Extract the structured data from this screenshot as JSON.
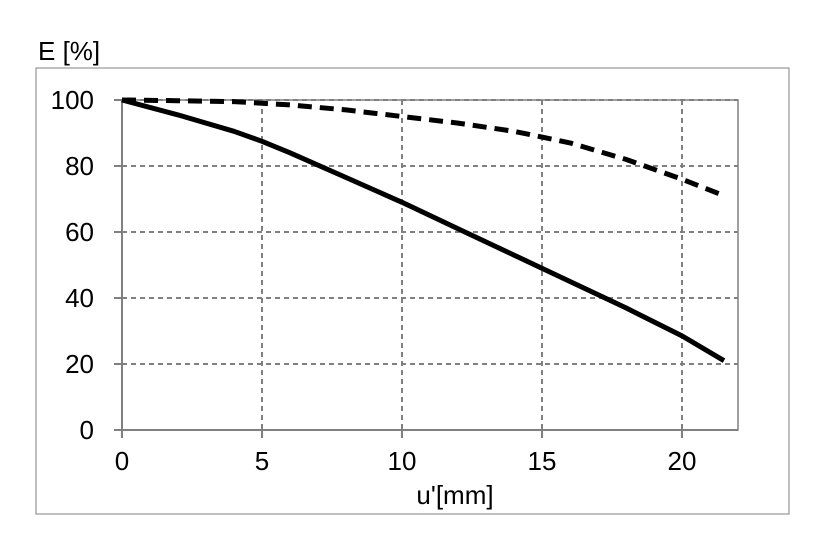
{
  "chart_data": {
    "type": "line",
    "title": "",
    "xlabel": "u'[mm]",
    "ylabel": "E [%]",
    "xlim": [
      0,
      22
    ],
    "ylim": [
      0,
      100
    ],
    "x_ticks": [
      0,
      5,
      10,
      15,
      20
    ],
    "y_ticks": [
      0,
      20,
      40,
      60,
      80,
      100
    ],
    "x_tick_labels": [
      "0",
      "5",
      "10",
      "15",
      "20"
    ],
    "y_tick_labels": [
      "0",
      "20",
      "40",
      "60",
      "80",
      "100"
    ],
    "grid": true,
    "grid_style": "dashed",
    "legend": false,
    "series": [
      {
        "line_style": "solid",
        "color": "#000000",
        "x": [
          0,
          2,
          4,
          5,
          6,
          8,
          10,
          12,
          14,
          16,
          18,
          20,
          21.5
        ],
        "y": [
          100,
          95.5,
          90.5,
          87.5,
          84,
          76.5,
          69,
          61,
          53,
          45,
          37,
          28.5,
          21
        ]
      },
      {
        "line_style": "dashed",
        "color": "#000000",
        "x": [
          0,
          2,
          4,
          6,
          8,
          10,
          12,
          14,
          16,
          18,
          19,
          20,
          21.5
        ],
        "y": [
          100,
          99.8,
          99.5,
          98.5,
          97,
          95,
          93,
          90.5,
          87,
          82,
          79,
          76,
          71
        ]
      }
    ]
  }
}
